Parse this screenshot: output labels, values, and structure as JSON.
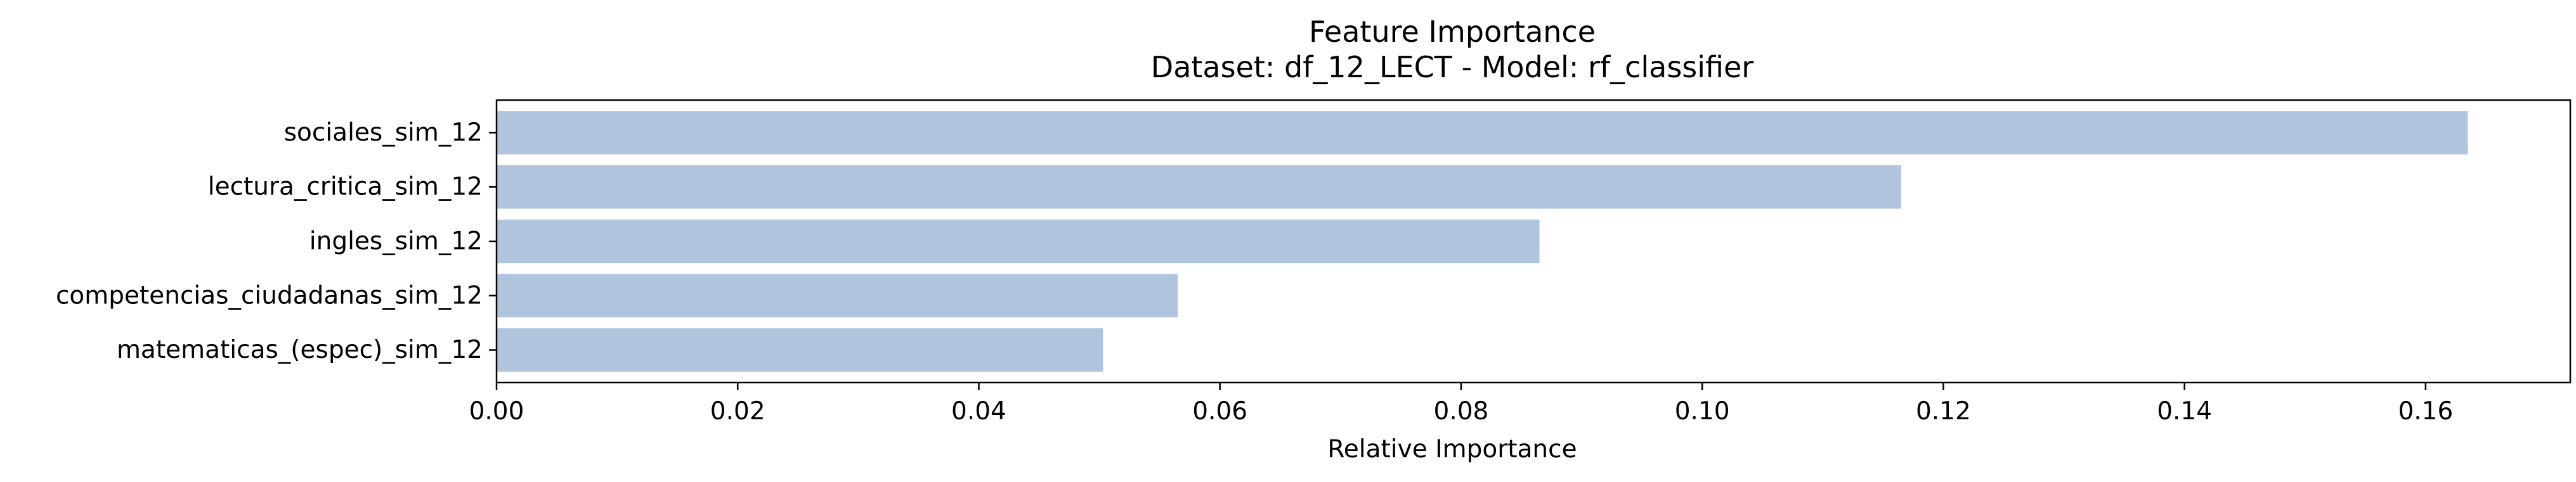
{
  "chart_data": {
    "type": "bar",
    "orientation": "horizontal",
    "title": "Feature Importance",
    "subtitle": "Dataset: df_12_LECT  -  Model: rf_classifier",
    "xlabel": "Relative Importance",
    "ylabel": "",
    "xlim": [
      0,
      0.172
    ],
    "x_ticks": [
      0.0,
      0.02,
      0.04,
      0.06,
      0.08,
      0.1,
      0.12,
      0.14,
      0.16
    ],
    "x_tick_labels": [
      "0.00",
      "0.02",
      "0.04",
      "0.06",
      "0.08",
      "0.10",
      "0.12",
      "0.14",
      "0.16"
    ],
    "categories": [
      "sociales_sim_12",
      "lectura_critica_sim_12",
      "ingles_sim_12",
      "competencias_ciudadanas_sim_12",
      "matematicas_(espec)_sim_12"
    ],
    "values": [
      0.1635,
      0.1165,
      0.0865,
      0.0565,
      0.0503
    ],
    "bar_color": "#b0c4de",
    "grid": false,
    "legend": "none"
  }
}
